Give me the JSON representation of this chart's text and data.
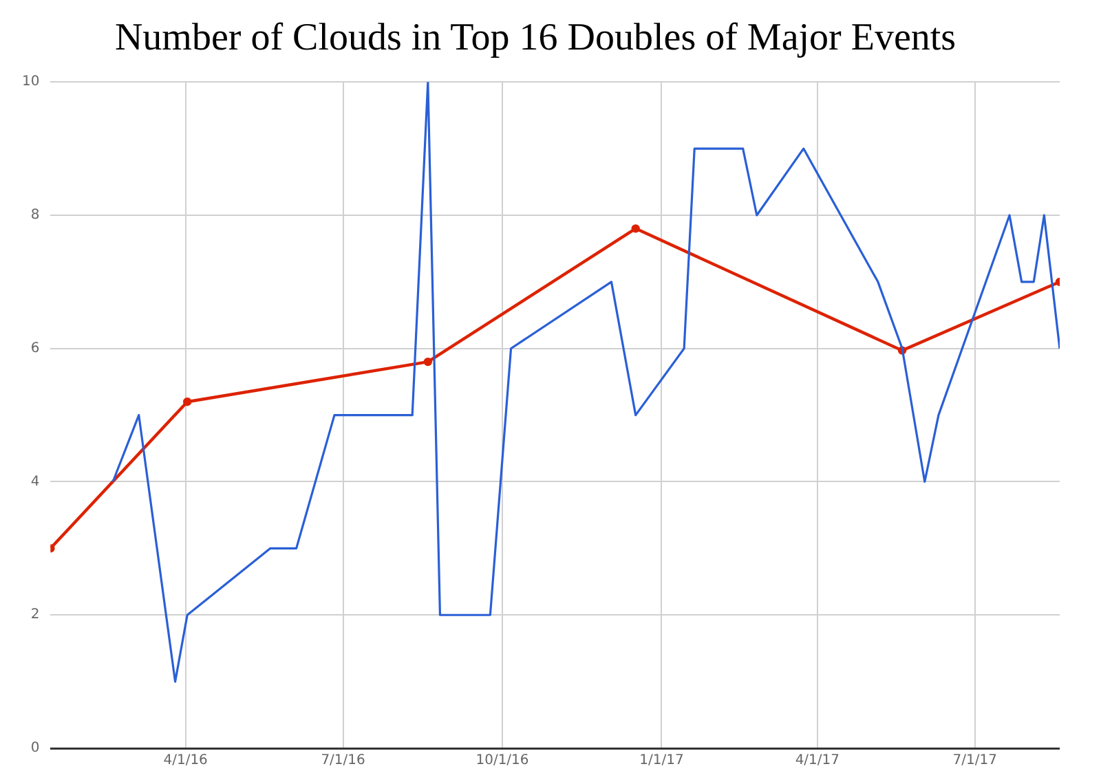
{
  "chart_data": {
    "type": "line",
    "title": "Number of Clouds in Top 16 Doubles of Major Events",
    "xlim": [
      "2016-01-14",
      "2017-08-19"
    ],
    "xticks": [
      {
        "value": "2016-04-01",
        "label": "4/1/16"
      },
      {
        "value": "2016-07-01",
        "label": "7/1/16"
      },
      {
        "value": "2016-10-01",
        "label": "10/1/16"
      },
      {
        "value": "2017-01-01",
        "label": "1/1/17"
      },
      {
        "value": "2017-04-01",
        "label": "4/1/17"
      },
      {
        "value": "2017-07-01",
        "label": "7/1/17"
      }
    ],
    "ylim": [
      0,
      10
    ],
    "yticks": [
      0,
      2,
      4,
      6,
      8,
      10
    ],
    "grid": true,
    "legend": false,
    "series": [
      {
        "color": "#2a5fd6",
        "marker": "none",
        "x": [
          "2016-02-19",
          "2016-03-05",
          "2016-03-26",
          "2016-04-02",
          "2016-05-20",
          "2016-06-04",
          "2016-06-26",
          "2016-08-10",
          "2016-08-19",
          "2016-08-26",
          "2016-09-24",
          "2016-10-06",
          "2016-12-03",
          "2016-12-17",
          "2017-01-14",
          "2017-01-20",
          "2017-02-17",
          "2017-02-25",
          "2017-03-24",
          "2017-05-06",
          "2017-05-20",
          "2017-06-02",
          "2017-06-10",
          "2017-07-21",
          "2017-07-28",
          "2017-08-04",
          "2017-08-10",
          "2017-08-19"
        ],
        "values": [
          4,
          5,
          1,
          2,
          3,
          3,
          5,
          5,
          10,
          2,
          2,
          6,
          7,
          5,
          6,
          9,
          9,
          8,
          9,
          7,
          6,
          4,
          5,
          8,
          7,
          7,
          8,
          6
        ]
      },
      {
        "color": "#dd2200",
        "marker": "circle",
        "x": [
          "2016-01-14",
          "2016-04-02",
          "2016-08-19",
          "2016-12-17",
          "2017-05-20",
          "2017-08-19"
        ],
        "values": [
          3,
          5.2,
          5.8,
          7.8,
          5.97,
          7
        ]
      }
    ]
  }
}
